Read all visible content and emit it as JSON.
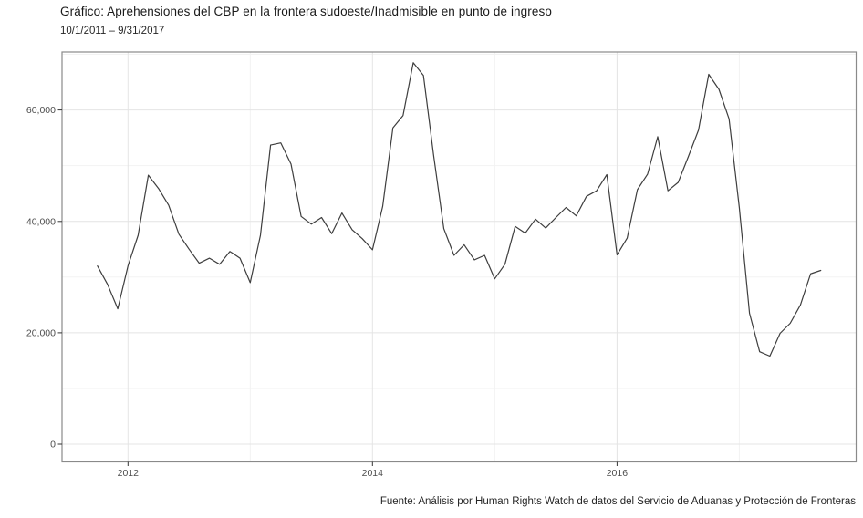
{
  "header": {
    "title": "Gráfico: Aprehensiones del CBP en la frontera sudoeste/Inadmisible en punto de ingreso",
    "subtitle": "10/1/2011 – 9/31/2017"
  },
  "footer": {
    "source": "Fuente: Análisis por Human Rights Watch de datos del Servicio de Aduanas y Protección de Fronteras"
  },
  "chart_data": {
    "type": "line",
    "title": "Gráfico: Aprehensiones del CBP en la frontera sudoeste/Inadmisible en punto de ingreso",
    "subtitle": "10/1/2011 – 9/31/2017",
    "source": "Fuente: Análisis por Human Rights Watch de datos del Servicio de Aduanas y Protección de Fronteras",
    "xlabel": "",
    "ylabel": "",
    "legend": "none",
    "grid": "major-and-minor",
    "x": [
      "2011-10",
      "2011-11",
      "2011-12",
      "2012-01",
      "2012-02",
      "2012-03",
      "2012-04",
      "2012-05",
      "2012-06",
      "2012-07",
      "2012-08",
      "2012-09",
      "2012-10",
      "2012-11",
      "2012-12",
      "2013-01",
      "2013-02",
      "2013-03",
      "2013-04",
      "2013-05",
      "2013-06",
      "2013-07",
      "2013-08",
      "2013-09",
      "2013-10",
      "2013-11",
      "2013-12",
      "2014-01",
      "2014-02",
      "2014-03",
      "2014-04",
      "2014-05",
      "2014-06",
      "2014-07",
      "2014-08",
      "2014-09",
      "2014-10",
      "2014-11",
      "2014-12",
      "2015-01",
      "2015-02",
      "2015-03",
      "2015-04",
      "2015-05",
      "2015-06",
      "2015-07",
      "2015-08",
      "2015-09",
      "2015-10",
      "2015-11",
      "2015-12",
      "2016-01",
      "2016-02",
      "2016-03",
      "2016-04",
      "2016-05",
      "2016-06",
      "2016-07",
      "2016-08",
      "2016-09",
      "2016-10",
      "2016-11",
      "2016-12",
      "2017-01",
      "2017-02",
      "2017-03",
      "2017-04",
      "2017-05",
      "2017-06",
      "2017-07",
      "2017-08",
      "2017-09"
    ],
    "values": [
      32000,
      28700,
      24300,
      32000,
      37500,
      48300,
      45900,
      42900,
      37700,
      35000,
      32500,
      33400,
      32300,
      34600,
      33400,
      29000,
      37500,
      53700,
      54100,
      50300,
      40900,
      39500,
      40700,
      37800,
      41500,
      38500,
      36900,
      34900,
      42700,
      56800,
      59000,
      68500,
      66200,
      51900,
      38700,
      33900,
      35800,
      33100,
      33900,
      29700,
      32300,
      39100,
      37900,
      40400,
      38800,
      40700,
      42500,
      41000,
      44500,
      45500,
      48400,
      34000,
      37000,
      45700,
      48500,
      55200,
      45500,
      47000,
      51600,
      56400,
      66400,
      63700,
      58400,
      42500,
      23500,
      16600,
      15800,
      19900,
      21700,
      25000,
      30600,
      31200
    ],
    "ylim": [
      -3190,
      70420
    ],
    "x_pad_months": 3.47,
    "yticks": {
      "major": [
        0,
        20000,
        40000,
        60000
      ],
      "labels": [
        "0",
        "20,000",
        "40,000",
        "60,000"
      ],
      "minor": [
        10000,
        30000,
        50000,
        70000
      ]
    },
    "xticks": {
      "months": [
        "2012-01",
        "2014-01",
        "2016-01"
      ],
      "labels": [
        "2012",
        "2014",
        "2016"
      ],
      "minor_months": [
        "2013-01",
        "2015-01",
        "2017-01"
      ]
    },
    "colors": {
      "line": "#3e3e3e",
      "grid_major": "#e4e4e4",
      "grid_minor": "#f1f1f1",
      "panel_border": "#8a8a8a",
      "tick": "#333333",
      "tick_label": "#4d4d4d",
      "text": "#1a1a1a",
      "background": "#ffffff"
    }
  }
}
